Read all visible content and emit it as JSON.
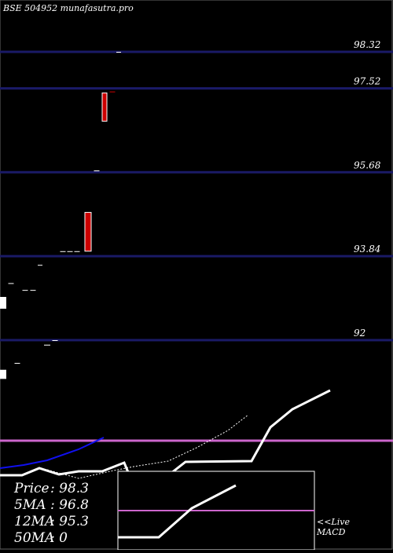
{
  "header": {
    "title": "BSE 504952  munafasutra.pro"
  },
  "chart_data": {
    "type": "candlestick",
    "price_levels": [
      {
        "label": "98.32",
        "value": 98.32
      },
      {
        "label": "97.52",
        "value": 97.52
      },
      {
        "label": "95.68",
        "value": 95.68
      },
      {
        "label": "93.84",
        "value": 93.84
      },
      {
        "label": "92",
        "value": 92
      }
    ],
    "ylim": [
      90.9,
      99.3
    ],
    "candles": [
      {
        "open": 91.35,
        "high": 91.35,
        "low": 91.15,
        "close": 91.15,
        "color": "#ffffff"
      },
      {
        "open": 93.25,
        "high": 93.25,
        "low": 93.25,
        "close": 93.25,
        "color": "#ffffff"
      },
      {
        "open": 91.5,
        "high": 91.5,
        "low": 91.5,
        "close": 91.5,
        "color": "#ffffff"
      },
      {
        "open": 93.1,
        "high": 93.1,
        "low": 93.1,
        "close": 93.1,
        "color": "#ffffff"
      },
      {
        "open": 93.1,
        "high": 93.1,
        "low": 93.1,
        "close": 93.1,
        "color": "#ffffff"
      },
      {
        "open": 93.65,
        "high": 93.65,
        "low": 93.65,
        "close": 93.65,
        "color": "#ffffff"
      },
      {
        "open": 91.9,
        "high": 91.9,
        "low": 91.9,
        "close": 91.9,
        "color": "#ffffff"
      },
      {
        "open": 92.0,
        "high": 92.0,
        "low": 92.0,
        "close": 92.0,
        "color": "#ffffff"
      },
      {
        "open": 93.95,
        "high": 93.95,
        "low": 93.95,
        "close": 93.95,
        "color": "#ffffff"
      },
      {
        "open": 93.95,
        "high": 93.95,
        "low": 93.95,
        "close": 93.95,
        "color": "#ffffff"
      },
      {
        "open": 93.95,
        "high": 93.95,
        "low": 93.95,
        "close": 93.95,
        "color": "#ffffff"
      },
      {
        "open": 94.8,
        "high": 94.8,
        "low": 93.95,
        "close": 93.95,
        "color": "#cc0000"
      },
      {
        "open": 95.72,
        "high": 95.72,
        "low": 95.72,
        "close": 95.72,
        "color": "#ffffff"
      },
      {
        "open": 97.42,
        "high": 97.42,
        "low": 96.8,
        "close": 96.8,
        "color": "#cc0000"
      },
      {
        "open": 97.45,
        "high": 97.45,
        "low": 97.45,
        "close": 97.45,
        "color": "#cc0000"
      },
      {
        "open": 98.32,
        "high": 98.32,
        "low": 98.32,
        "close": 98.32,
        "color": "#ffffff"
      }
    ],
    "colors": {
      "grid": "#1a1a66",
      "bear": "#cc0000",
      "neutral": "#ffffff",
      "ma_line": "#0000ff",
      "signal": "#cc66cc"
    },
    "indicators": {
      "price_label": "Price",
      "price": "98.3",
      "ma5_label": "5MA",
      "ma5": "96.8",
      "ma12_label": "12MA",
      "ma12": "95.3",
      "ma50_label": "50MA",
      "ma50": "0"
    },
    "macd_label_line1": "<<Live",
    "macd_label_line2": "MACD",
    "grid": true
  }
}
